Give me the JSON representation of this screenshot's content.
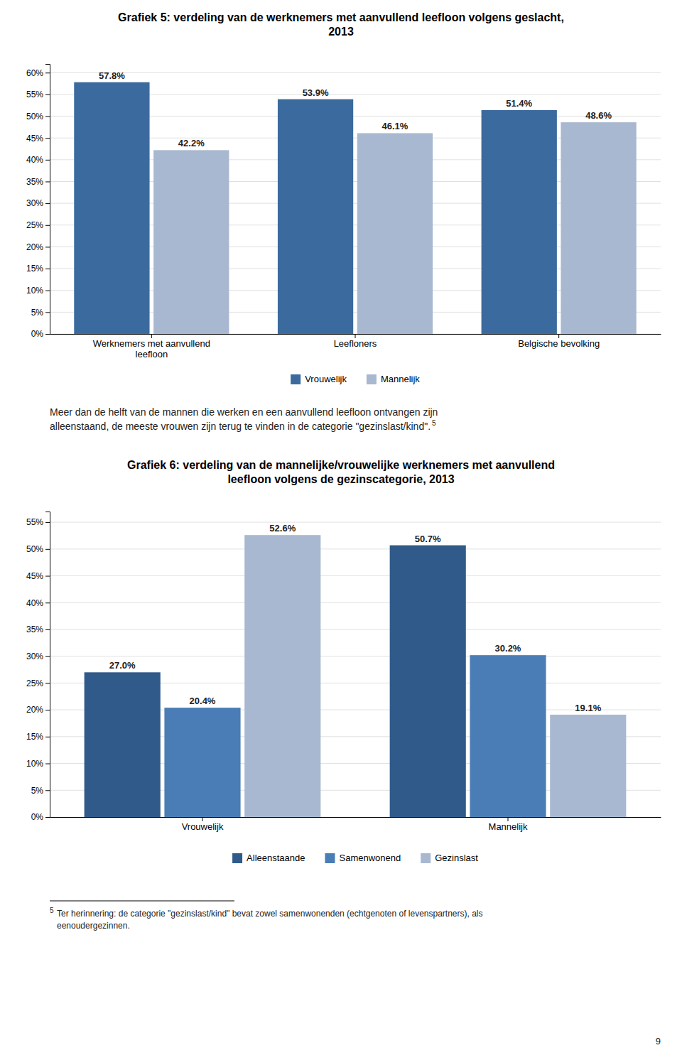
{
  "chart_data": [
    {
      "type": "bar",
      "title": "Grafiek 5: verdeling van de werknemers met aanvullend leefloon volgens geslacht,\n2013",
      "categories": [
        "Werknemers met aanvullend\nleefloon",
        "Leefloners",
        "Belgische bevolking"
      ],
      "series": [
        {
          "name": "Vrouwelijk",
          "color": "#3B6A9E",
          "values": [
            57.8,
            53.9,
            51.4
          ],
          "value_labels": [
            "57.8%",
            "53.9%",
            "51.4%"
          ]
        },
        {
          "name": "Mannelijk",
          "color": "#A8B8D0",
          "values": [
            42.2,
            46.1,
            48.6
          ],
          "value_labels": [
            "42.2%",
            "46.1%",
            "48.6%"
          ]
        }
      ],
      "ylim": [
        0,
        62
      ],
      "yticks": [
        {
          "value": 0,
          "label": "0%"
        },
        {
          "value": 5,
          "label": "5%"
        },
        {
          "value": 10,
          "label": "10%"
        },
        {
          "value": 15,
          "label": "15%"
        },
        {
          "value": 20,
          "label": "20%"
        },
        {
          "value": 25,
          "label": "25%"
        },
        {
          "value": 30,
          "label": "30%"
        },
        {
          "value": 35,
          "label": "35%"
        },
        {
          "value": 40,
          "label": "40%"
        },
        {
          "value": 45,
          "label": "45%"
        },
        {
          "value": 50,
          "label": "50%"
        },
        {
          "value": 55,
          "label": "55%"
        },
        {
          "value": 60,
          "label": "60%"
        }
      ],
      "grid": true,
      "legend": "bottom",
      "data_labels": true
    },
    {
      "type": "bar",
      "title": "Grafiek 6: verdeling van de mannelijke/vrouwelijke werknemers met aanvullend\nleefloon volgens de gezinscategorie, 2013",
      "categories": [
        "Vrouwelijk",
        "Mannelijk"
      ],
      "series": [
        {
          "name": "Alleenstaande",
          "color": "#2F5A8A",
          "values": [
            27.0,
            50.7
          ],
          "value_labels": [
            "27.0%",
            "50.7%"
          ]
        },
        {
          "name": "Samenwonend",
          "color": "#4A7DB5",
          "values": [
            20.4,
            30.2
          ],
          "value_labels": [
            "20.4%",
            "30.2%"
          ]
        },
        {
          "name": "Gezinslast",
          "color": "#A8B8D0",
          "values": [
            52.6,
            19.1
          ],
          "value_labels": [
            "52.6%",
            "19.1%"
          ]
        }
      ],
      "ylim": [
        0,
        57
      ],
      "yticks": [
        {
          "value": 0,
          "label": "0%"
        },
        {
          "value": 5,
          "label": "5%"
        },
        {
          "value": 10,
          "label": "10%"
        },
        {
          "value": 15,
          "label": "15%"
        },
        {
          "value": 20,
          "label": "20%"
        },
        {
          "value": 25,
          "label": "25%"
        },
        {
          "value": 30,
          "label": "30%"
        },
        {
          "value": 35,
          "label": "35%"
        },
        {
          "value": 40,
          "label": "40%"
        },
        {
          "value": 45,
          "label": "45%"
        },
        {
          "value": 50,
          "label": "50%"
        },
        {
          "value": 55,
          "label": "55%"
        }
      ],
      "grid": true,
      "legend": "bottom",
      "data_labels": true,
      "annotations": [
        "Meer dan de helft van de mannen die werken en een aanvullend leefloon ontvangen zijn\nalleenstaand, de meeste vrouwen zijn terug te vinden in de categorie \"gezinslast/kind\".",
        "5",
        "5",
        "Ter herinnering: de categorie \"gezinslast/kind\" bevat zowel samenwonenden (echtgenoten of levenspartners), als\neenoudergezinnen.",
        "9"
      ]
    }
  ]
}
